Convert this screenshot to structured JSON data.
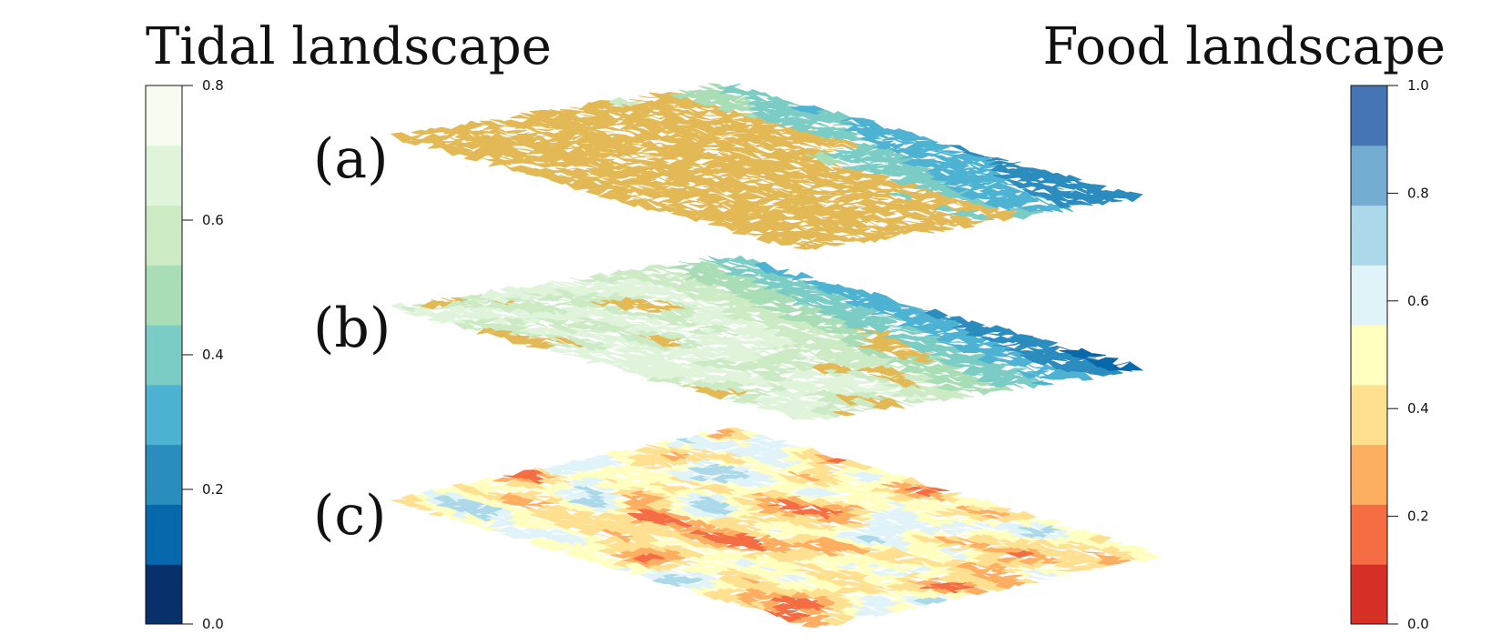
{
  "titles": {
    "left": "Tidal landscape",
    "right": "Food landscape"
  },
  "panel_labels": [
    "(a)",
    "(b)",
    "(c)"
  ],
  "tidal_scale": {
    "ticks": [
      "0.0",
      "0.2",
      "0.4",
      "0.6",
      "0.8"
    ],
    "colors": [
      "#08306b",
      "#0868ac",
      "#2b8cbe",
      "#4eb3d3",
      "#7bccc4",
      "#a8ddb5",
      "#ccebc5",
      "#e0f3db",
      "#f7fcf0"
    ]
  },
  "food_scale": {
    "ticks": [
      "0.0",
      "0.2",
      "0.4",
      "0.6",
      "0.8",
      "1.0"
    ],
    "colors": [
      "#d73027",
      "#f46d43",
      "#fdae61",
      "#fee090",
      "#ffffbf",
      "#e0f3f8",
      "#abd9e9",
      "#74add1",
      "#4575b4"
    ]
  },
  "dry_color": "#e2b955"
}
